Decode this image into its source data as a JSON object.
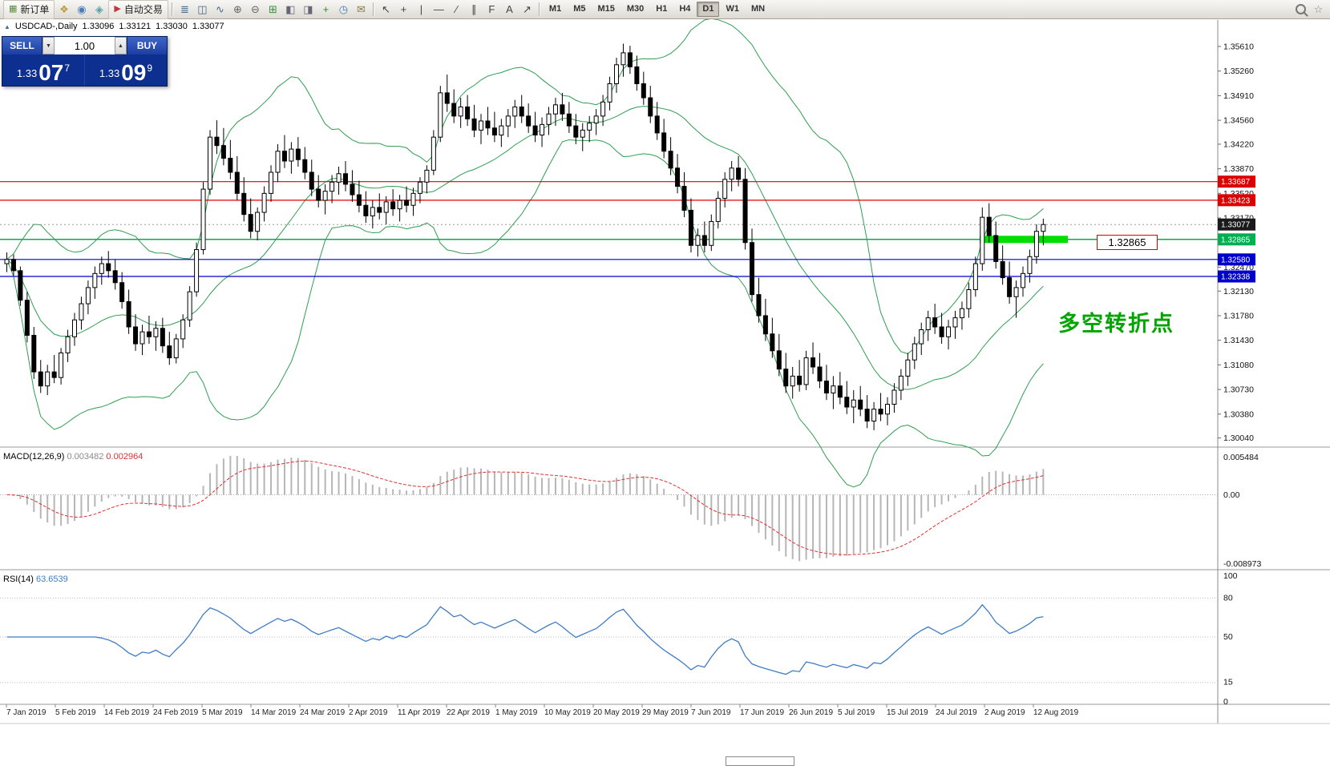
{
  "toolbar": {
    "items": [
      {
        "type": "button",
        "name": "new-order-button",
        "icon": "new-order-icon",
        "glyph": "▦",
        "color": "#5b8c3e",
        "label": "新订单"
      },
      {
        "type": "icon",
        "name": "market-watch-icon",
        "glyph": "❖",
        "color": "#c09a3e"
      },
      {
        "type": "icon",
        "name": "navigator-icon",
        "glyph": "◉",
        "color": "#4a7ebb"
      },
      {
        "type": "icon",
        "name": "terminal-icon",
        "glyph": "◈",
        "color": "#52a3a3"
      },
      {
        "type": "button",
        "name": "autotrading-button",
        "icon": "autotrading-icon",
        "glyph": "▶",
        "color": "#c23a3a",
        "label": "自动交易"
      },
      {
        "type": "sep"
      },
      {
        "type": "icon",
        "name": "bar-chart-icon",
        "glyph": "≣",
        "color": "#4a6a8a"
      },
      {
        "type": "icon",
        "name": "candlestick-chart-icon",
        "glyph": "◫",
        "color": "#4a6a8a"
      },
      {
        "type": "icon",
        "name": "line-chart-icon",
        "glyph": "∿",
        "color": "#4a6a8a"
      },
      {
        "type": "icon",
        "name": "zoom-in-icon",
        "glyph": "⊕",
        "color": "#666"
      },
      {
        "type": "icon",
        "name": "zoom-out-icon",
        "glyph": "⊖",
        "color": "#666"
      },
      {
        "type": "icon",
        "name": "indicators-icon",
        "glyph": "⊞",
        "color": "#3e8c3e"
      },
      {
        "type": "icon",
        "name": "tile-vertical-icon",
        "glyph": "◧",
        "color": "#667"
      },
      {
        "type": "icon",
        "name": "tile-horizontal-icon",
        "glyph": "◨",
        "color": "#667"
      },
      {
        "type": "icon",
        "name": "new-chart-icon",
        "glyph": "+",
        "color": "#2f8c2f"
      },
      {
        "type": "icon",
        "name": "autoscroll-icon",
        "glyph": "◷",
        "color": "#4a7ebb"
      },
      {
        "type": "icon",
        "name": "templates-icon",
        "glyph": "✉",
        "color": "#8a7a4a"
      },
      {
        "type": "sep"
      },
      {
        "type": "icon",
        "name": "cursor-icon",
        "glyph": "↖",
        "color": "#444"
      },
      {
        "type": "icon",
        "name": "crosshair-icon",
        "glyph": "+",
        "color": "#444"
      },
      {
        "type": "icon",
        "name": "vertical-line-icon",
        "glyph": "|",
        "color": "#444"
      },
      {
        "type": "icon",
        "name": "horizontal-line-icon",
        "glyph": "—",
        "color": "#444"
      },
      {
        "type": "icon",
        "name": "trendline-icon",
        "glyph": "∕",
        "color": "#444"
      },
      {
        "type": "icon",
        "name": "equidistant-channel-icon",
        "glyph": "∥",
        "color": "#444"
      },
      {
        "type": "icon",
        "name": "fibonacci-icon",
        "glyph": "F",
        "color": "#444"
      },
      {
        "type": "icon",
        "name": "text-label-icon",
        "glyph": "A",
        "color": "#444"
      },
      {
        "type": "icon",
        "name": "arrows-icon",
        "glyph": "↗",
        "color": "#444"
      },
      {
        "type": "sep"
      },
      {
        "type": "timeframes"
      },
      {
        "type": "spacer"
      },
      {
        "type": "icon",
        "name": "search-icon",
        "cls": "ic-mag"
      },
      {
        "type": "icon",
        "name": "favorites-icon",
        "glyph": "☆",
        "color": "#888"
      }
    ],
    "timeframes": [
      "M1",
      "M5",
      "M15",
      "M30",
      "H1",
      "H4",
      "D1",
      "W1",
      "MN"
    ],
    "active_timeframe": "D1"
  },
  "chart_header": {
    "window_icon": "▲",
    "symbol": "USDCAD-,Daily",
    "open": "1.33096",
    "high": "1.33121",
    "low": "1.33030",
    "close": "1.33077"
  },
  "quote_panel": {
    "sell_label": "SELL",
    "buy_label": "BUY",
    "volume": "1.00",
    "spin_down": "▼",
    "spin_up": "▲",
    "sell_price_prefix": "1.33",
    "sell_price_big": "07",
    "sell_price_sup": "7",
    "buy_price_prefix": "1.33",
    "buy_price_big": "09",
    "buy_price_sup": "9"
  },
  "annotation": {
    "text": "多空转折点",
    "color": "#00a500"
  },
  "price_callout": {
    "text": "1.32865"
  },
  "chart_data": {
    "type": "candlestick",
    "symbol": "USDCAD",
    "timeframe": "Daily",
    "x_labels": [
      "7 Jan 2019",
      "5 Feb 2019",
      "14 Feb 2019",
      "24 Feb 2019",
      "5 Mar 2019",
      "14 Mar 2019",
      "24 Mar 2019",
      "2 Apr 2019",
      "11 Apr 2019",
      "22 Apr 2019",
      "1 May 2019",
      "10 May 2019",
      "20 May 2019",
      "29 May 2019",
      "7 Jun 2019",
      "17 Jun 2019",
      "26 Jun 2019",
      "5 Jul 2019",
      "15 Jul 2019",
      "24 Jul 2019",
      "2 Aug 2019",
      "12 Aug 2019"
    ],
    "y_ticks": [
      "1.35610",
      "1.35260",
      "1.34910",
      "1.34560",
      "1.34220",
      "1.33870",
      "1.33520",
      "1.33170",
      "1.32820",
      "1.32470",
      "1.32130",
      "1.31780",
      "1.31430",
      "1.31080",
      "1.30730",
      "1.30380",
      "1.30040"
    ],
    "hlines": [
      {
        "price": 1.33687,
        "label": "1.33687",
        "color": "#dd0000"
      },
      {
        "price": 1.33423,
        "label": "1.33423",
        "color": "#dd0000"
      },
      {
        "price": 1.32865,
        "label": "1.32865",
        "color": "#00b050"
      },
      {
        "price": 1.3258,
        "label": "1.32580",
        "color": "#0000cc"
      },
      {
        "price": 1.32338,
        "label": "1.32338",
        "color": "#0000cc"
      }
    ],
    "current_price": {
      "value": 1.33077,
      "label": "1.33077"
    },
    "highlight_band": {
      "price": 1.32865,
      "color": "#00dd00"
    },
    "indicators": {
      "bollinger": {
        "color": "#2e9e50"
      },
      "macd": {
        "label": "MACD(12,26,9)",
        "value_main": "0.003482",
        "value_signal": "0.002964",
        "scale_max": "0.005484",
        "scale_zero": "0.00",
        "scale_min": "-0.008973",
        "histogram_color": "#b6b6b6",
        "signal_color": "#e03030"
      },
      "rsi": {
        "label": "RSI(14)",
        "value": "63.6539",
        "color": "#3f7cc4",
        "scale": [
          "100",
          "80",
          "50",
          "15",
          "0"
        ],
        "levels": [
          80,
          50,
          15
        ]
      }
    },
    "candles": [
      [
        1.3252,
        1.3268,
        1.324,
        1.3258
      ],
      [
        1.3258,
        1.3265,
        1.3235,
        1.3242
      ],
      [
        1.3242,
        1.3248,
        1.3192,
        1.32
      ],
      [
        1.32,
        1.3212,
        1.314,
        1.315
      ],
      [
        1.315,
        1.3162,
        1.3088,
        1.3098
      ],
      [
        1.3098,
        1.3115,
        1.3068,
        1.3078
      ],
      [
        1.3078,
        1.3108,
        1.3065,
        1.3098
      ],
      [
        1.3098,
        1.3122,
        1.3082,
        1.309
      ],
      [
        1.309,
        1.3132,
        1.308,
        1.3125
      ],
      [
        1.3125,
        1.3158,
        1.3112,
        1.3148
      ],
      [
        1.3148,
        1.3182,
        1.3135,
        1.3172
      ],
      [
        1.3172,
        1.3205,
        1.3158,
        1.3195
      ],
      [
        1.3195,
        1.3228,
        1.318,
        1.3218
      ],
      [
        1.3218,
        1.3248,
        1.3202,
        1.3238
      ],
      [
        1.3238,
        1.3262,
        1.3222,
        1.3252
      ],
      [
        1.3252,
        1.327,
        1.3232,
        1.3242
      ],
      [
        1.3242,
        1.3258,
        1.3215,
        1.3225
      ],
      [
        1.3225,
        1.324,
        1.3188,
        1.3198
      ],
      [
        1.3198,
        1.3215,
        1.3152,
        1.3162
      ],
      [
        1.3162,
        1.318,
        1.3128,
        1.3138
      ],
      [
        1.3138,
        1.3165,
        1.3122,
        1.3155
      ],
      [
        1.3155,
        1.3178,
        1.3138,
        1.3148
      ],
      [
        1.3148,
        1.317,
        1.3128,
        1.316
      ],
      [
        1.316,
        1.3175,
        1.3125,
        1.3135
      ],
      [
        1.3135,
        1.3155,
        1.3108,
        1.3118
      ],
      [
        1.3118,
        1.3152,
        1.311,
        1.3145
      ],
      [
        1.3145,
        1.318,
        1.3132,
        1.3172
      ],
      [
        1.3172,
        1.322,
        1.3162,
        1.3212
      ],
      [
        1.3212,
        1.3282,
        1.3205,
        1.3272
      ],
      [
        1.3272,
        1.3368,
        1.3265,
        1.3358
      ],
      [
        1.3358,
        1.3442,
        1.335,
        1.3432
      ],
      [
        1.3432,
        1.3456,
        1.3408,
        1.342
      ],
      [
        1.342,
        1.3445,
        1.3392,
        1.3402
      ],
      [
        1.3402,
        1.3428,
        1.3372,
        1.3382
      ],
      [
        1.3382,
        1.3405,
        1.3342,
        1.3352
      ],
      [
        1.3352,
        1.3375,
        1.3312,
        1.3322
      ],
      [
        1.3322,
        1.3345,
        1.3288,
        1.3298
      ],
      [
        1.3298,
        1.3332,
        1.3285,
        1.3325
      ],
      [
        1.3325,
        1.3362,
        1.3312,
        1.3352
      ],
      [
        1.3352,
        1.3392,
        1.334,
        1.3382
      ],
      [
        1.3382,
        1.3422,
        1.3368,
        1.3412
      ],
      [
        1.3412,
        1.3435,
        1.3388,
        1.3398
      ],
      [
        1.3398,
        1.3425,
        1.338,
        1.3415
      ],
      [
        1.3415,
        1.3432,
        1.339,
        1.34
      ],
      [
        1.34,
        1.3418,
        1.3372,
        1.3382
      ],
      [
        1.3382,
        1.34,
        1.3348,
        1.3358
      ],
      [
        1.3358,
        1.3378,
        1.3332,
        1.3342
      ],
      [
        1.3342,
        1.3365,
        1.3322,
        1.3355
      ],
      [
        1.3355,
        1.3378,
        1.3338,
        1.3368
      ],
      [
        1.3368,
        1.339,
        1.335,
        1.338
      ],
      [
        1.338,
        1.3398,
        1.3355,
        1.3365
      ],
      [
        1.3365,
        1.3385,
        1.334,
        1.335
      ],
      [
        1.335,
        1.337,
        1.3325,
        1.3335
      ],
      [
        1.3335,
        1.3355,
        1.331,
        1.332
      ],
      [
        1.332,
        1.3342,
        1.3302,
        1.3332
      ],
      [
        1.3332,
        1.3352,
        1.3315,
        1.3325
      ],
      [
        1.3325,
        1.3348,
        1.3308,
        1.334
      ],
      [
        1.334,
        1.3358,
        1.332,
        1.333
      ],
      [
        1.333,
        1.335,
        1.3312,
        1.3342
      ],
      [
        1.3342,
        1.3362,
        1.3325,
        1.3335
      ],
      [
        1.3335,
        1.336,
        1.332,
        1.3352
      ],
      [
        1.3352,
        1.3375,
        1.3338,
        1.3368
      ],
      [
        1.3368,
        1.3392,
        1.3352,
        1.3385
      ],
      [
        1.3385,
        1.3442,
        1.3378,
        1.3432
      ],
      [
        1.3432,
        1.3505,
        1.3425,
        1.3495
      ],
      [
        1.3495,
        1.3521,
        1.3468,
        1.348
      ],
      [
        1.348,
        1.35,
        1.3452,
        1.3462
      ],
      [
        1.3462,
        1.3488,
        1.3445,
        1.3475
      ],
      [
        1.3475,
        1.3492,
        1.3448,
        1.3458
      ],
      [
        1.3458,
        1.3478,
        1.3432,
        1.3442
      ],
      [
        1.3442,
        1.3465,
        1.3422,
        1.3455
      ],
      [
        1.3455,
        1.3475,
        1.3435,
        1.3445
      ],
      [
        1.3445,
        1.3468,
        1.3425,
        1.3435
      ],
      [
        1.3435,
        1.3458,
        1.3418,
        1.3448
      ],
      [
        1.3448,
        1.3472,
        1.3432,
        1.3462
      ],
      [
        1.3462,
        1.3485,
        1.3445,
        1.3475
      ],
      [
        1.3475,
        1.3492,
        1.3452,
        1.3462
      ],
      [
        1.3462,
        1.348,
        1.3438,
        1.3448
      ],
      [
        1.3448,
        1.3468,
        1.3425,
        1.3435
      ],
      [
        1.3435,
        1.346,
        1.3418,
        1.345
      ],
      [
        1.345,
        1.3475,
        1.3435,
        1.3465
      ],
      [
        1.3465,
        1.3488,
        1.3448,
        1.3478
      ],
      [
        1.3478,
        1.3495,
        1.3455,
        1.3465
      ],
      [
        1.3465,
        1.3482,
        1.3438,
        1.3448
      ],
      [
        1.3448,
        1.3465,
        1.3422,
        1.3432
      ],
      [
        1.3432,
        1.3452,
        1.3412,
        1.3442
      ],
      [
        1.3442,
        1.3462,
        1.3425,
        1.3452
      ],
      [
        1.3452,
        1.3472,
        1.3435,
        1.3462
      ],
      [
        1.3462,
        1.3492,
        1.3448,
        1.3482
      ],
      [
        1.3482,
        1.3518,
        1.347,
        1.3508
      ],
      [
        1.3508,
        1.3545,
        1.3495,
        1.3535
      ],
      [
        1.3535,
        1.3565,
        1.3518,
        1.3552
      ],
      [
        1.3552,
        1.3562,
        1.3522,
        1.3532
      ],
      [
        1.3532,
        1.3548,
        1.3498,
        1.3508
      ],
      [
        1.3508,
        1.3525,
        1.3478,
        1.3488
      ],
      [
        1.3488,
        1.3505,
        1.3452,
        1.3462
      ],
      [
        1.3462,
        1.3482,
        1.3428,
        1.3438
      ],
      [
        1.3438,
        1.3458,
        1.3402,
        1.3412
      ],
      [
        1.3412,
        1.3432,
        1.3378,
        1.3388
      ],
      [
        1.3388,
        1.3408,
        1.3352,
        1.3362
      ],
      [
        1.3362,
        1.3382,
        1.3318,
        1.3328
      ],
      [
        1.3328,
        1.3345,
        1.3268,
        1.3278
      ],
      [
        1.3278,
        1.3302,
        1.3262,
        1.3292
      ],
      [
        1.3292,
        1.3312,
        1.3268,
        1.3278
      ],
      [
        1.3278,
        1.3322,
        1.327,
        1.3312
      ],
      [
        1.3312,
        1.3355,
        1.3302,
        1.3345
      ],
      [
        1.3345,
        1.3382,
        1.3332,
        1.3372
      ],
      [
        1.3372,
        1.3398,
        1.3355,
        1.3388
      ],
      [
        1.3388,
        1.3405,
        1.3362,
        1.3372
      ],
      [
        1.3372,
        1.3388,
        1.3272,
        1.3282
      ],
      [
        1.3282,
        1.3302,
        1.3198,
        1.3208
      ],
      [
        1.3208,
        1.3232,
        1.3168,
        1.3178
      ],
      [
        1.3178,
        1.3202,
        1.3142,
        1.3152
      ],
      [
        1.3152,
        1.3175,
        1.3118,
        1.3128
      ],
      [
        1.3128,
        1.3152,
        1.3092,
        1.3102
      ],
      [
        1.3102,
        1.3125,
        1.3068,
        1.3078
      ],
      [
        1.3078,
        1.3105,
        1.306,
        1.3092
      ],
      [
        1.3092,
        1.3115,
        1.307,
        1.308
      ],
      [
        1.308,
        1.3128,
        1.3072,
        1.3118
      ],
      [
        1.3118,
        1.314,
        1.3095,
        1.3105
      ],
      [
        1.3105,
        1.3125,
        1.3075,
        1.3085
      ],
      [
        1.3085,
        1.3108,
        1.3058,
        1.3068
      ],
      [
        1.3068,
        1.3092,
        1.3045,
        1.3078
      ],
      [
        1.3078,
        1.3098,
        1.3052,
        1.3062
      ],
      [
        1.3062,
        1.3085,
        1.3038,
        1.3048
      ],
      [
        1.3048,
        1.3072,
        1.3025,
        1.3058
      ],
      [
        1.3058,
        1.3078,
        1.3035,
        1.3045
      ],
      [
        1.3045,
        1.3065,
        1.3018,
        1.3028
      ],
      [
        1.3028,
        1.3055,
        1.3015,
        1.3045
      ],
      [
        1.3045,
        1.3068,
        1.3028,
        1.3038
      ],
      [
        1.3038,
        1.3062,
        1.3022,
        1.3052
      ],
      [
        1.3052,
        1.3082,
        1.304,
        1.3072
      ],
      [
        1.3072,
        1.3102,
        1.3058,
        1.3092
      ],
      [
        1.3092,
        1.3125,
        1.3078,
        1.3115
      ],
      [
        1.3115,
        1.3148,
        1.3102,
        1.3138
      ],
      [
        1.3138,
        1.3168,
        1.3122,
        1.3158
      ],
      [
        1.3158,
        1.3185,
        1.3142,
        1.3175
      ],
      [
        1.3175,
        1.3195,
        1.3152,
        1.3162
      ],
      [
        1.3162,
        1.3182,
        1.3138,
        1.3148
      ],
      [
        1.3148,
        1.3172,
        1.313,
        1.3162
      ],
      [
        1.3162,
        1.3185,
        1.3145,
        1.3175
      ],
      [
        1.3175,
        1.3198,
        1.3158,
        1.3188
      ],
      [
        1.3188,
        1.3225,
        1.3175,
        1.3215
      ],
      [
        1.3215,
        1.3262,
        1.3205,
        1.3252
      ],
      [
        1.3252,
        1.3332,
        1.3242,
        1.3318
      ],
      [
        1.3318,
        1.3338,
        1.3282,
        1.3292
      ],
      [
        1.3292,
        1.3312,
        1.3245,
        1.3255
      ],
      [
        1.3255,
        1.3278,
        1.3222,
        1.3232
      ],
      [
        1.3232,
        1.3255,
        1.3195,
        1.3205
      ],
      [
        1.3205,
        1.3228,
        1.3175,
        1.3218
      ],
      [
        1.3218,
        1.3248,
        1.3205,
        1.3238
      ],
      [
        1.3238,
        1.3272,
        1.3225,
        1.3262
      ],
      [
        1.3262,
        1.3308,
        1.3252,
        1.3298
      ],
      [
        1.3298,
        1.3316,
        1.3278,
        1.33077
      ]
    ]
  }
}
